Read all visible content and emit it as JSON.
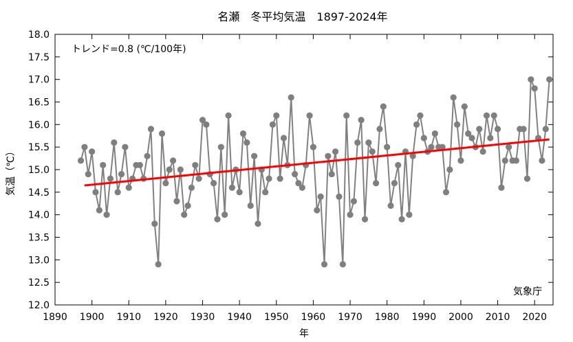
{
  "chart_data": {
    "type": "line",
    "title": "名瀬　冬平均気温　1897-2024年",
    "xlabel": "年",
    "ylabel": "気温（℃）",
    "xlim": [
      1890,
      2025
    ],
    "ylim": [
      12.0,
      18.0
    ],
    "x_ticks": [
      1890,
      1900,
      1910,
      1920,
      1930,
      1940,
      1950,
      1960,
      1970,
      1980,
      1990,
      2000,
      2010,
      2020
    ],
    "x_tick_labels": [
      "1890",
      "1900",
      "1910",
      "1920",
      "1930",
      "1940",
      "1950",
      "1960",
      "1970",
      "1980",
      "1990",
      "2000",
      "2010",
      "2020"
    ],
    "y_ticks": [
      12.0,
      12.5,
      13.0,
      13.5,
      14.0,
      14.5,
      15.0,
      15.5,
      16.0,
      16.5,
      17.0,
      17.5,
      18.0
    ],
    "y_tick_labels": [
      "12.0",
      "12.5",
      "13.0",
      "13.5",
      "14.0",
      "14.5",
      "15.0",
      "15.5",
      "16.0",
      "16.5",
      "17.0",
      "17.5",
      "18.0"
    ],
    "trend_annotation": "トレンド=0.8 (℃/100年)",
    "source": "気象庁",
    "colors": {
      "series": "#808080",
      "marker": "#7f7f7f",
      "trend": "#ff0000",
      "axis": "#000000"
    },
    "series": [
      {
        "x": [
          1897,
          1898,
          1899,
          1900,
          1901,
          1902,
          1903,
          1904,
          1905,
          1906,
          1907,
          1908,
          1909,
          1910,
          1911,
          1912,
          1913,
          1914,
          1915,
          1916,
          1917,
          1918,
          1919,
          1920,
          1921,
          1922,
          1923,
          1924,
          1925,
          1926,
          1927,
          1928,
          1929,
          1930,
          1931,
          1932,
          1933,
          1934,
          1935,
          1936,
          1937,
          1938,
          1939,
          1940,
          1941,
          1942,
          1943,
          1944,
          1945,
          1946,
          1947,
          1948,
          1949,
          1950,
          1951,
          1952,
          1953,
          1954,
          1955,
          1956,
          1957,
          1958,
          1959,
          1960,
          1961,
          1962,
          1963,
          1964,
          1965,
          1966,
          1967,
          1968,
          1969,
          1970,
          1971,
          1972,
          1973,
          1974,
          1975,
          1976,
          1977,
          1978,
          1979,
          1980,
          1981,
          1982,
          1983,
          1984,
          1985,
          1986,
          1987,
          1988,
          1989,
          1990,
          1991,
          1992,
          1993,
          1994,
          1995,
          1996,
          1997,
          1998,
          1999,
          2000,
          2001,
          2002,
          2003,
          2004,
          2005,
          2006,
          2007,
          2008,
          2009,
          2010,
          2011,
          2012,
          2013,
          2014,
          2015,
          2016,
          2017,
          2018,
          2019,
          2020,
          2021,
          2022,
          2023,
          2024
        ],
        "values": [
          15.2,
          15.5,
          14.9,
          15.4,
          14.5,
          14.1,
          15.1,
          14.0,
          14.8,
          15.6,
          14.5,
          14.9,
          15.5,
          14.6,
          14.8,
          15.1,
          15.1,
          14.8,
          15.3,
          15.9,
          13.8,
          12.9,
          15.8,
          14.7,
          15.0,
          15.2,
          14.3,
          15.0,
          14.0,
          14.2,
          14.6,
          15.1,
          14.8,
          16.1,
          16.0,
          14.9,
          14.7,
          13.9,
          15.5,
          14.0,
          16.2,
          14.6,
          15.0,
          14.5,
          15.8,
          15.6,
          14.2,
          15.3,
          13.8,
          15.0,
          14.5,
          14.8,
          16.0,
          16.2,
          14.8,
          15.7,
          15.1,
          16.6,
          14.9,
          14.7,
          14.6,
          15.1,
          16.2,
          15.5,
          14.1,
          14.4,
          12.9,
          15.3,
          14.9,
          15.4,
          14.4,
          12.9,
          16.2,
          14.0,
          14.3,
          15.6,
          16.1,
          13.9,
          15.6,
          15.4,
          14.7,
          15.9,
          16.4,
          15.5,
          14.2,
          14.7,
          15.1,
          13.9,
          15.4,
          14.0,
          15.3,
          16.0,
          16.2,
          15.7,
          15.4,
          15.5,
          15.8,
          15.5,
          15.5,
          14.5,
          15.0,
          16.6,
          16.0,
          15.2,
          16.4,
          15.8,
          15.7,
          15.5,
          15.9,
          15.4,
          16.2,
          15.7,
          16.2,
          15.9,
          14.6,
          15.2,
          15.5,
          15.2,
          15.2,
          15.9,
          15.9,
          14.8,
          17.0,
          16.8,
          15.7,
          15.2,
          15.9,
          17.0
        ]
      }
    ],
    "trend": {
      "x": [
        1898,
        2024
      ],
      "values": [
        14.65,
        15.67
      ]
    }
  }
}
